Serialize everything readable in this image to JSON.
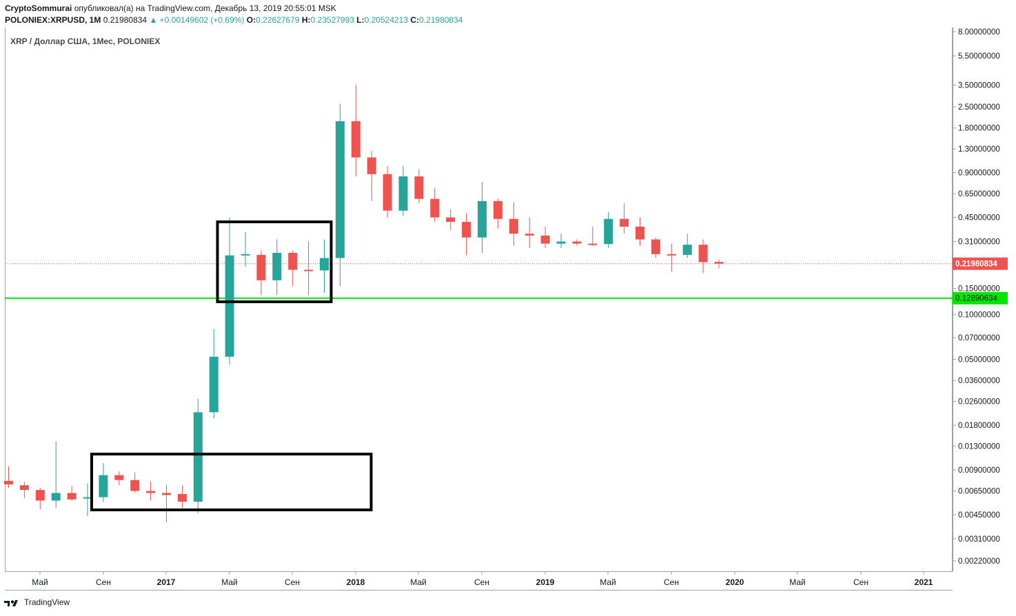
{
  "header": {
    "author": "CryptoSommurai",
    "published_text": " опубликовал(а) на TradingView.com, Декабрь 13, 2019 20:55:01 MSK",
    "symbol": "POLONIEX:XRPUSD, 1M",
    "last": "0.21980834",
    "change": "▲ +0.00149602 (+0.69%)",
    "o_label": "O:",
    "o_value": "0.22627679",
    "h_label": "H:",
    "h_value": "0.23527993",
    "l_label": "L:",
    "l_value": "0.20524213",
    "c_label": "C:",
    "c_value": "0.21980834"
  },
  "symbol_label": "XRP / Доллар США, 1Мес, POLONIEX",
  "footer": {
    "brand": "TradingView"
  },
  "colors": {
    "up": "#26a69a",
    "down": "#ef5350",
    "support": "#00e600",
    "price_line": "#ef5350"
  },
  "chart_data": {
    "type": "candlestick",
    "y_scale": "log",
    "ylim": [
      0.00185,
      8.5
    ],
    "y_ticks": [
      "8.00000000",
      "5.50000000",
      "3.50000000",
      "2.50000000",
      "1.80000000",
      "1.30000000",
      "0.90000000",
      "0.65000000",
      "0.45000000",
      "0.31000000",
      "0.15000000",
      "0.10000000",
      "0.07000000",
      "0.05000000",
      "0.03600000",
      "0.02600000",
      "0.01800000",
      "0.01300000",
      "0.00900000",
      "0.00650000",
      "0.00450000",
      "0.00310000",
      "0.00220000"
    ],
    "x_ticks": [
      "Май",
      "Сен",
      "2017",
      "Май",
      "Сен",
      "2018",
      "Май",
      "Сен",
      "2019",
      "Май",
      "Сен",
      "2020",
      "Май",
      "Сен",
      "2021"
    ],
    "candles": [
      {
        "o": 0.0076,
        "h": 0.0095,
        "l": 0.0068,
        "c": 0.0072
      },
      {
        "o": 0.0071,
        "h": 0.0075,
        "l": 0.0058,
        "c": 0.0066
      },
      {
        "o": 0.0066,
        "h": 0.0068,
        "l": 0.0049,
        "c": 0.0056
      },
      {
        "o": 0.0056,
        "h": 0.014,
        "l": 0.005,
        "c": 0.0063
      },
      {
        "o": 0.0063,
        "h": 0.007,
        "l": 0.0056,
        "c": 0.0057
      },
      {
        "o": 0.0058,
        "h": 0.0073,
        "l": 0.0044,
        "c": 0.0059
      },
      {
        "o": 0.0059,
        "h": 0.01,
        "l": 0.0055,
        "c": 0.0083
      },
      {
        "o": 0.0083,
        "h": 0.0088,
        "l": 0.0071,
        "c": 0.0077
      },
      {
        "o": 0.0077,
        "h": 0.0087,
        "l": 0.0063,
        "c": 0.0065
      },
      {
        "o": 0.0065,
        "h": 0.0075,
        "l": 0.0056,
        "c": 0.0063
      },
      {
        "o": 0.0063,
        "h": 0.0071,
        "l": 0.004,
        "c": 0.0061
      },
      {
        "o": 0.0062,
        "h": 0.0071,
        "l": 0.005,
        "c": 0.0055
      },
      {
        "o": 0.0055,
        "h": 0.027,
        "l": 0.0046,
        "c": 0.022
      },
      {
        "o": 0.022,
        "h": 0.08,
        "l": 0.02,
        "c": 0.052
      },
      {
        "o": 0.052,
        "h": 0.45,
        "l": 0.046,
        "c": 0.25
      },
      {
        "o": 0.25,
        "h": 0.36,
        "l": 0.21,
        "c": 0.255
      },
      {
        "o": 0.252,
        "h": 0.27,
        "l": 0.135,
        "c": 0.17
      },
      {
        "o": 0.17,
        "h": 0.32,
        "l": 0.135,
        "c": 0.26
      },
      {
        "o": 0.26,
        "h": 0.27,
        "l": 0.155,
        "c": 0.2
      },
      {
        "o": 0.2,
        "h": 0.31,
        "l": 0.135,
        "c": 0.198
      },
      {
        "o": 0.198,
        "h": 0.32,
        "l": 0.14,
        "c": 0.24
      },
      {
        "o": 0.24,
        "h": 2.6,
        "l": 0.155,
        "c": 2.0
      },
      {
        "o": 2.0,
        "h": 3.5,
        "l": 0.85,
        "c": 1.14
      },
      {
        "o": 1.14,
        "h": 1.26,
        "l": 0.58,
        "c": 0.88
      },
      {
        "o": 0.88,
        "h": 1.0,
        "l": 0.45,
        "c": 0.5
      },
      {
        "o": 0.5,
        "h": 1.0,
        "l": 0.46,
        "c": 0.85
      },
      {
        "o": 0.85,
        "h": 0.95,
        "l": 0.56,
        "c": 0.6
      },
      {
        "o": 0.6,
        "h": 0.71,
        "l": 0.42,
        "c": 0.45
      },
      {
        "o": 0.45,
        "h": 0.51,
        "l": 0.37,
        "c": 0.42
      },
      {
        "o": 0.42,
        "h": 0.48,
        "l": 0.25,
        "c": 0.33
      },
      {
        "o": 0.33,
        "h": 0.78,
        "l": 0.26,
        "c": 0.58
      },
      {
        "o": 0.58,
        "h": 0.6,
        "l": 0.38,
        "c": 0.44
      },
      {
        "o": 0.44,
        "h": 0.57,
        "l": 0.29,
        "c": 0.35
      },
      {
        "o": 0.35,
        "h": 0.45,
        "l": 0.28,
        "c": 0.34
      },
      {
        "o": 0.34,
        "h": 0.39,
        "l": 0.28,
        "c": 0.3
      },
      {
        "o": 0.3,
        "h": 0.35,
        "l": 0.28,
        "c": 0.31
      },
      {
        "o": 0.31,
        "h": 0.32,
        "l": 0.29,
        "c": 0.3
      },
      {
        "o": 0.3,
        "h": 0.39,
        "l": 0.29,
        "c": 0.298
      },
      {
        "o": 0.298,
        "h": 0.49,
        "l": 0.28,
        "c": 0.44
      },
      {
        "o": 0.44,
        "h": 0.56,
        "l": 0.35,
        "c": 0.39
      },
      {
        "o": 0.39,
        "h": 0.45,
        "l": 0.29,
        "c": 0.32
      },
      {
        "o": 0.32,
        "h": 0.33,
        "l": 0.24,
        "c": 0.255
      },
      {
        "o": 0.255,
        "h": 0.3,
        "l": 0.195,
        "c": 0.252
      },
      {
        "o": 0.252,
        "h": 0.35,
        "l": 0.24,
        "c": 0.295
      },
      {
        "o": 0.295,
        "h": 0.32,
        "l": 0.19,
        "c": 0.225
      },
      {
        "o": 0.226,
        "h": 0.235,
        "l": 0.205,
        "c": 0.2198
      }
    ],
    "price_line": {
      "value": 0.21980834,
      "label": "0.21980834"
    },
    "support_line": {
      "value": 0.12890634,
      "label": "0.12890634"
    }
  }
}
